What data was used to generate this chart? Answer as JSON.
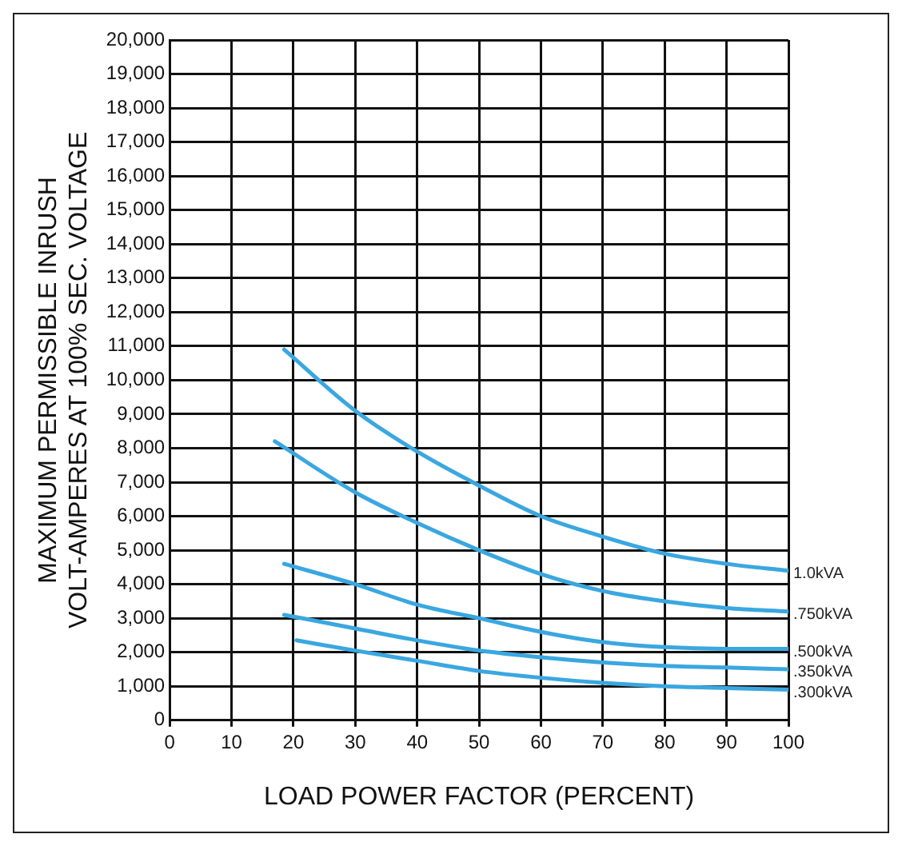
{
  "chart_data": {
    "type": "line",
    "xlabel": "LOAD POWER FACTOR (PERCENT)",
    "ylabel": "MAXIMUM PERMISSIBLE INRUSH\nVOLT-AMPERES AT 100% SEC. VOLTAGE",
    "xlim": [
      0,
      100
    ],
    "xticks": [
      0,
      10,
      20,
      30,
      40,
      50,
      60,
      70,
      80,
      90,
      100
    ],
    "ylim": [
      0,
      20000
    ],
    "yticks": [
      {
        "value": 0,
        "label": "0"
      },
      {
        "value": 1000,
        "label": "1,000"
      },
      {
        "value": 2000,
        "label": "2,000"
      },
      {
        "value": 3000,
        "label": "3,000"
      },
      {
        "value": 4000,
        "label": "4,000"
      },
      {
        "value": 5000,
        "label": "5,000"
      },
      {
        "value": 6000,
        "label": "6,000"
      },
      {
        "value": 7000,
        "label": "7,000"
      },
      {
        "value": 8000,
        "label": "8,000"
      },
      {
        "value": 9000,
        "label": "9,000"
      },
      {
        "value": 10000,
        "label": "10,000"
      },
      {
        "value": 11000,
        "label": "11,000"
      },
      {
        "value": 12000,
        "label": "12,000"
      },
      {
        "value": 13000,
        "label": "13,000"
      },
      {
        "value": 14000,
        "label": "14,000"
      },
      {
        "value": 15000,
        "label": "15,000"
      },
      {
        "value": 16000,
        "label": "16,000"
      },
      {
        "value": 17000,
        "label": "17,000"
      },
      {
        "value": 18000,
        "label": "18,000"
      },
      {
        "value": 19000,
        "label": "19,000"
      },
      {
        "value": 20000,
        "label": "20,000"
      }
    ],
    "grid": true,
    "legend": false,
    "marker": "none",
    "line_style": "solid",
    "series": [
      {
        "name": "1.0kVA",
        "color": "#3aa7e0",
        "x": [
          18.5,
          30,
          40,
          50,
          60,
          70,
          80,
          90,
          100
        ],
        "values": [
          10900,
          9100,
          7900,
          6900,
          6000,
          5400,
          4900,
          4600,
          4400
        ]
      },
      {
        "name": ".750kVA",
        "color": "#3aa7e0",
        "x": [
          17,
          30,
          40,
          50,
          60,
          70,
          80,
          90,
          100
        ],
        "values": [
          8200,
          6700,
          5800,
          5000,
          4300,
          3800,
          3500,
          3300,
          3200
        ]
      },
      {
        "name": ".500kVA",
        "color": "#3aa7e0",
        "x": [
          18.5,
          30,
          40,
          50,
          60,
          70,
          80,
          90,
          100
        ],
        "values": [
          4600,
          4000,
          3400,
          3000,
          2600,
          2300,
          2150,
          2100,
          2100
        ]
      },
      {
        "name": ".350kVA",
        "color": "#3aa7e0",
        "x": [
          18.5,
          30,
          40,
          50,
          60,
          70,
          80,
          90,
          100
        ],
        "values": [
          3100,
          2700,
          2350,
          2050,
          1850,
          1700,
          1600,
          1550,
          1500
        ]
      },
      {
        "name": ".300kVA",
        "color": "#3aa7e0",
        "x": [
          20.5,
          30,
          40,
          50,
          60,
          70,
          80,
          90,
          100
        ],
        "values": [
          2350,
          2050,
          1750,
          1450,
          1250,
          1100,
          1000,
          950,
          900
        ]
      }
    ]
  }
}
